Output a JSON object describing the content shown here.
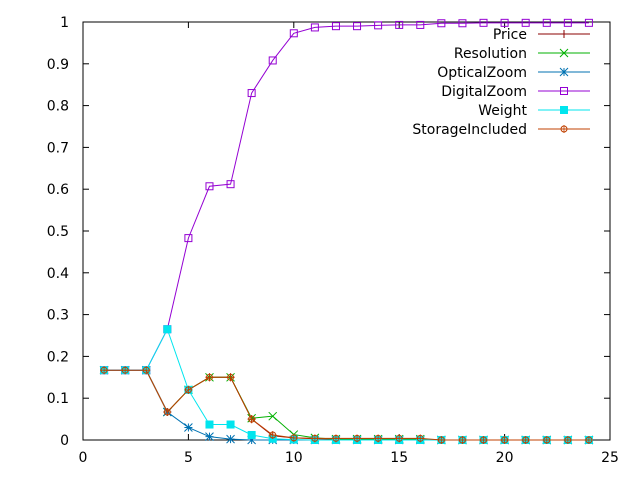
{
  "chart_data": {
    "type": "line",
    "title": "",
    "xlabel": "",
    "ylabel": "",
    "xlim": [
      0,
      25
    ],
    "ylim": [
      0,
      1
    ],
    "x_ticks": [
      "0",
      "5",
      "10",
      "15",
      "20",
      "25"
    ],
    "y_ticks": [
      "0",
      "0.1",
      "0.2",
      "0.3",
      "0.4",
      "0.5",
      "0.6",
      "0.7",
      "0.8",
      "0.9",
      "1"
    ],
    "grid": false,
    "legend_position": "top-right",
    "x": [
      1,
      2,
      3,
      4,
      5,
      6,
      7,
      8,
      9,
      10,
      11,
      12,
      13,
      14,
      15,
      16,
      17,
      18,
      19,
      20,
      21,
      22,
      23,
      24
    ],
    "series": [
      {
        "name": "Price",
        "color": "#8b0000",
        "marker": "plus",
        "values": [
          0.167,
          0.167,
          0.167,
          0.067,
          0.12,
          0.15,
          0.15,
          0.05,
          0.01,
          0.005,
          0.003,
          0.002,
          0.002,
          0.002,
          0.002,
          0.002,
          0,
          0,
          0,
          0,
          0,
          0,
          0,
          0
        ]
      },
      {
        "name": "Resolution",
        "color": "#00b000",
        "marker": "cross",
        "values": [
          0.167,
          0.167,
          0.167,
          0.067,
          0.12,
          0.15,
          0.15,
          0.052,
          0.057,
          0.013,
          0.005,
          0.002,
          0.002,
          0.002,
          0.002,
          0.002,
          0,
          0,
          0,
          0,
          0,
          0,
          0,
          0
        ]
      },
      {
        "name": "OpticalZoom",
        "color": "#0072b2",
        "marker": "star",
        "values": [
          0.167,
          0.167,
          0.167,
          0.067,
          0.03,
          0.008,
          0.002,
          0,
          0,
          0,
          0,
          0,
          0,
          0,
          0,
          0,
          0,
          0,
          0,
          0,
          0,
          0,
          0,
          0
        ]
      },
      {
        "name": "DigitalZoom",
        "color": "#9400d3",
        "marker": "square-open",
        "values": [
          0.167,
          0.167,
          0.167,
          0.265,
          0.483,
          0.607,
          0.612,
          0.83,
          0.908,
          0.973,
          0.987,
          0.99,
          0.99,
          0.992,
          0.993,
          0.993,
          0.997,
          0.997,
          0.998,
          0.998,
          0.998,
          0.998,
          0.998,
          0.998
        ]
      },
      {
        "name": "Weight",
        "color": "#00e5ee",
        "marker": "square-filled",
        "values": [
          0.167,
          0.167,
          0.167,
          0.265,
          0.12,
          0.037,
          0.037,
          0.012,
          0.003,
          0.001,
          0,
          0,
          0,
          0,
          0,
          0,
          0,
          0,
          0,
          0,
          0,
          0,
          0,
          0
        ]
      },
      {
        "name": "StorageIncluded",
        "color": "#c04000",
        "marker": "circle-dot",
        "values": [
          0.167,
          0.167,
          0.167,
          0.067,
          0.12,
          0.15,
          0.15,
          0.05,
          0.012,
          0.005,
          0.004,
          0.004,
          0.004,
          0.004,
          0.004,
          0.004,
          0,
          0,
          0,
          0,
          0,
          0,
          0,
          0
        ]
      }
    ]
  }
}
